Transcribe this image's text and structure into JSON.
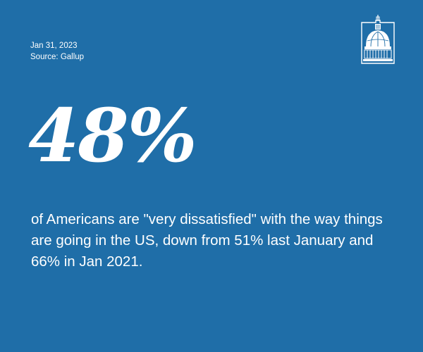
{
  "meta": {
    "date": "Jan 31, 2023",
    "source": "Source: Gallup"
  },
  "logo": {
    "icon": "capitol-dome-icon"
  },
  "stat": {
    "value": "48%",
    "description": "of Americans are \"very dissatisfied\" with the way things are going in the US, down from 51% last January and 66% in Jan 2021."
  },
  "colors": {
    "background": "#1f6ea8",
    "text": "#ffffff"
  }
}
